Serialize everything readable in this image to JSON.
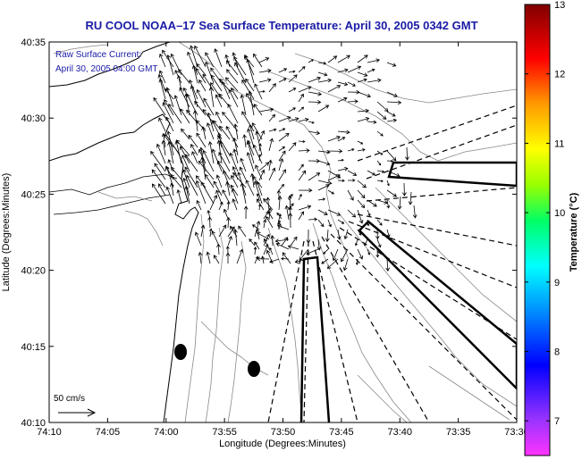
{
  "title": "RU COOL  NOAA–17  Sea Surface Temperature:  April 30, 2005 0342 GMT",
  "annotation_line1": "Raw Surface Current:",
  "annotation_line2": "April 30, 2005 04:00 GMT",
  "scale_label": "50 cm/s",
  "xlabel": "Longitude (Degrees:Minutes)",
  "ylabel": "Latitude (Degrees:Minutes)",
  "x_ticks": [
    "74:10",
    "74:05",
    "74:00",
    "73:55",
    "73:50",
    "73:45",
    "73:40",
    "73:35",
    "73:30"
  ],
  "y_ticks": [
    "40:35",
    "40:30",
    "40:25",
    "40:20",
    "40:15",
    "40:10"
  ],
  "colorbar": {
    "title": "Temperature (°C)",
    "ticks": [
      "13",
      "12",
      "11",
      "10",
      "9",
      "8",
      "7"
    ],
    "min": 6.5,
    "max": 13,
    "colors": [
      "#ff00ff",
      "#8000ff",
      "#0000ff",
      "#0080ff",
      "#00ffff",
      "#00ff80",
      "#80ff00",
      "#ffff00",
      "#ff8000",
      "#ff0000",
      "#800000"
    ]
  }
}
